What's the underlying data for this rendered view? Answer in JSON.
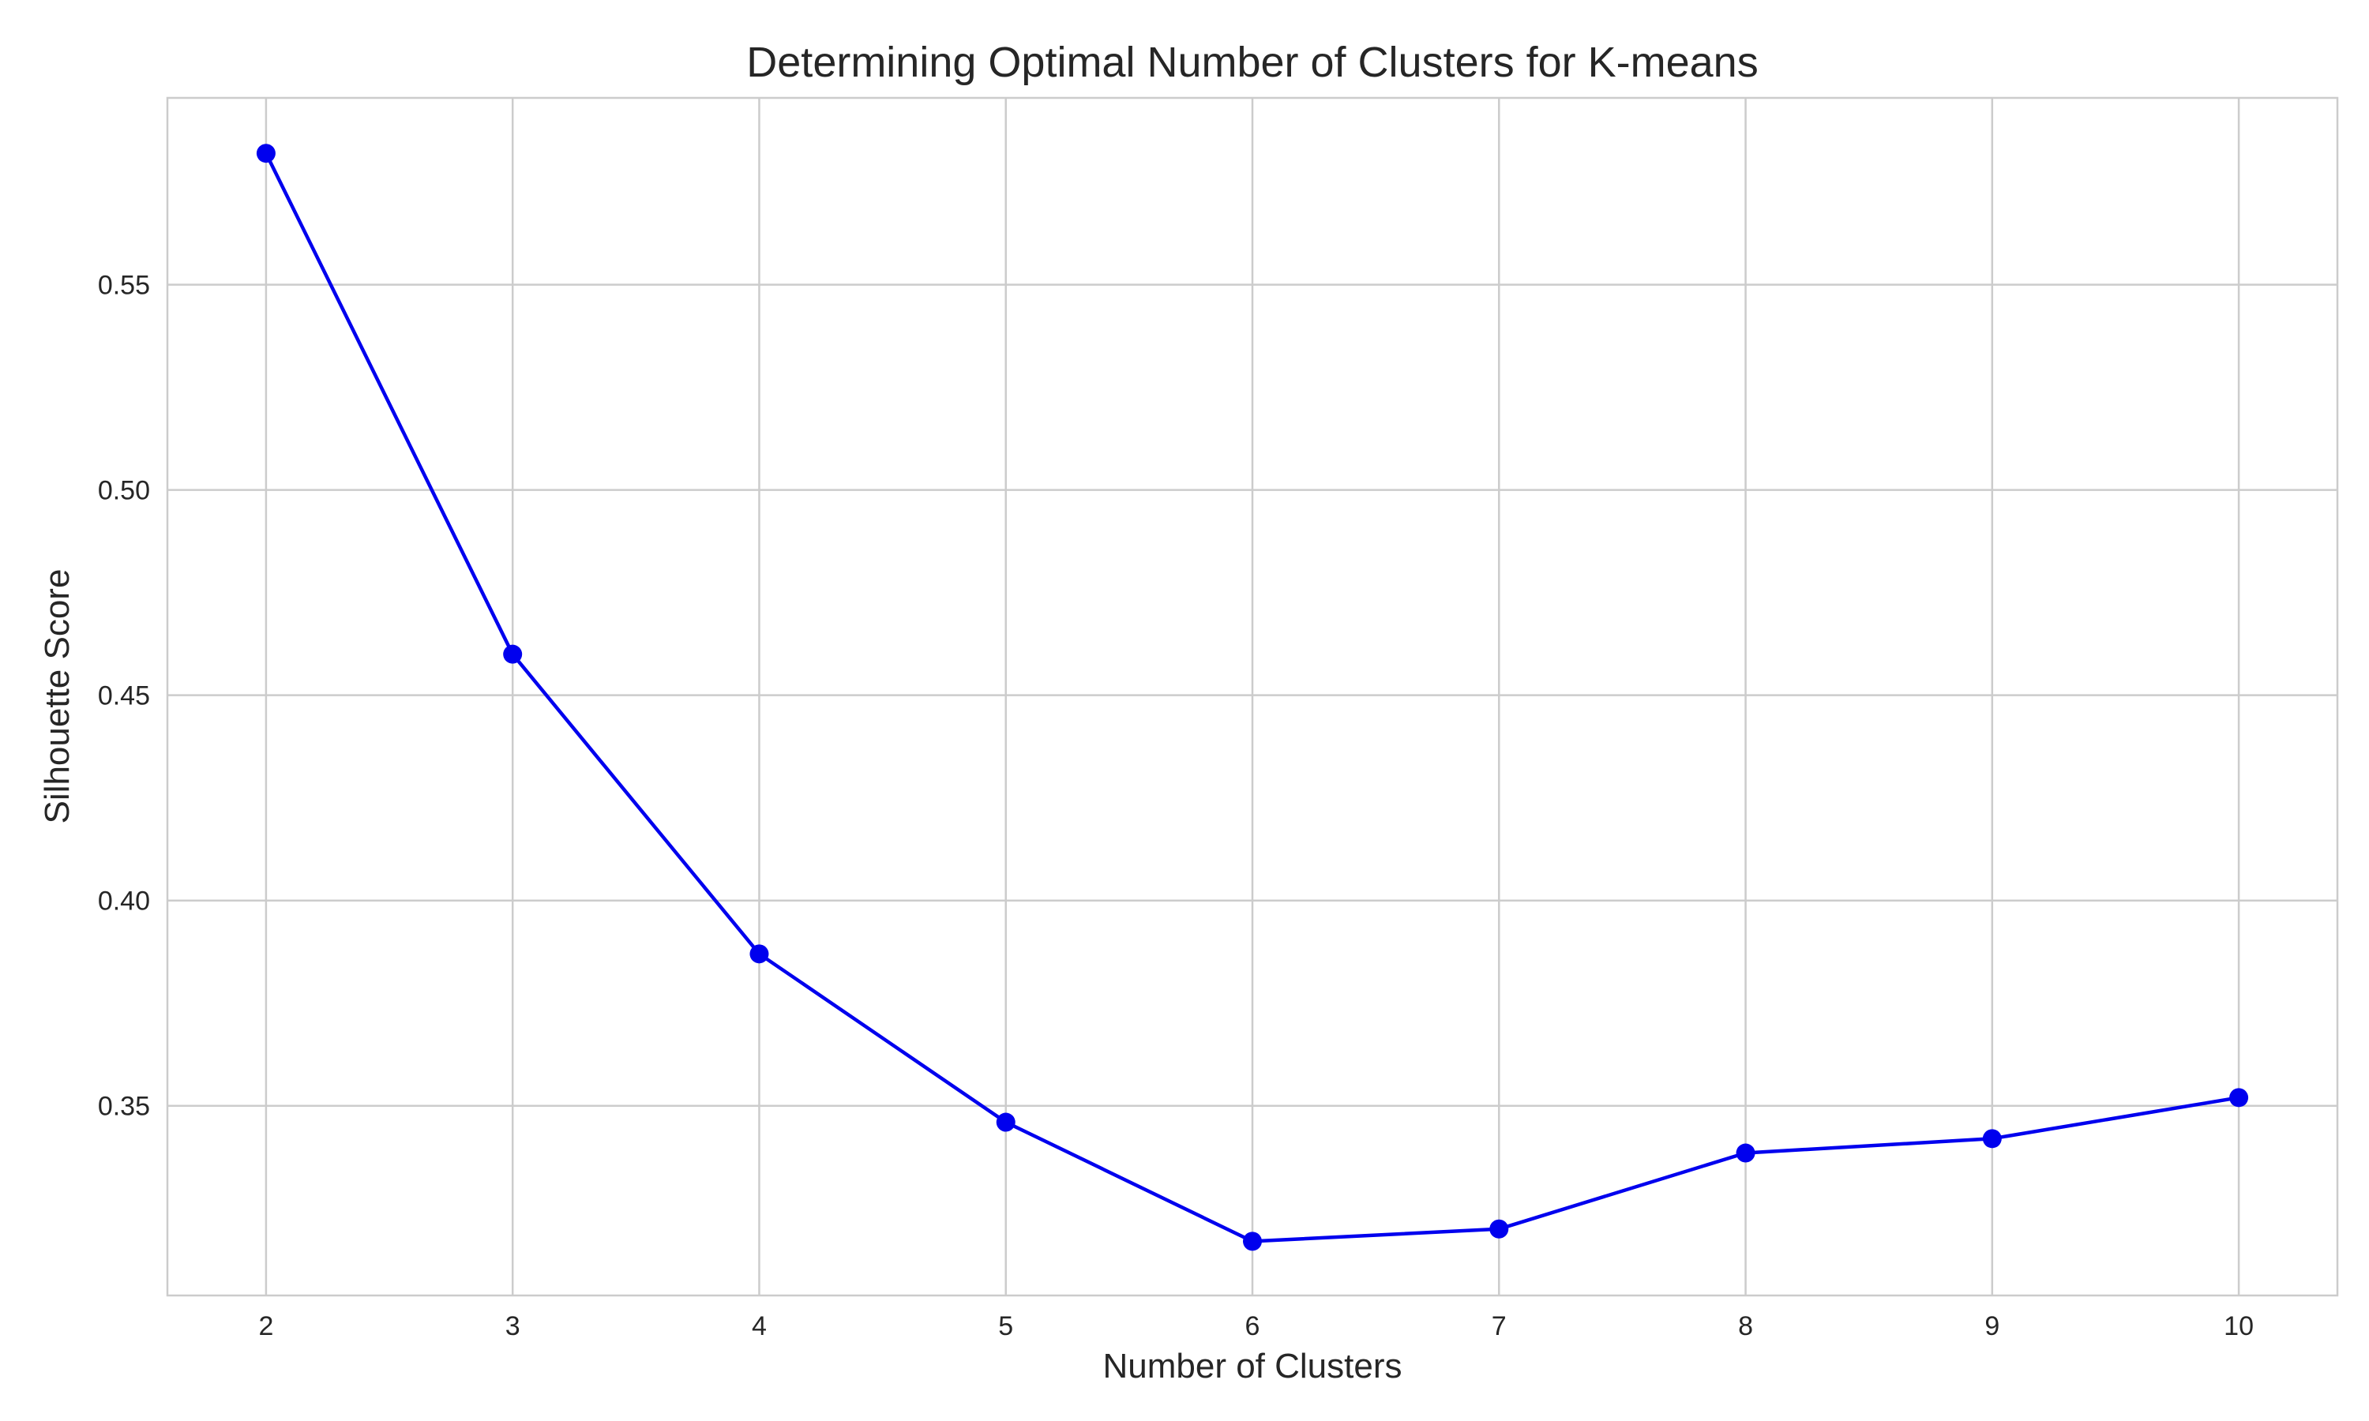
{
  "chart_data": {
    "type": "line",
    "title": "Determining Optimal Number of Clusters for K-means",
    "xlabel": "Number of Clusters",
    "ylabel": "Silhouette Score",
    "x": [
      2,
      3,
      4,
      5,
      6,
      7,
      8,
      9,
      10
    ],
    "series": [
      {
        "values": [
          0.582,
          0.46,
          0.387,
          0.346,
          0.317,
          0.32,
          0.3385,
          0.342,
          0.352
        ]
      }
    ],
    "x_ticks": [
      "2",
      "3",
      "4",
      "5",
      "6",
      "7",
      "8",
      "9",
      "10"
    ],
    "y_ticks": [
      "0.35",
      "0.40",
      "0.45",
      "0.50",
      "0.55"
    ],
    "y_tick_values": [
      0.35,
      0.4,
      0.45,
      0.5,
      0.55
    ],
    "xlim": [
      1.6,
      10.4
    ],
    "ylim": [
      0.3038,
      0.5955
    ],
    "grid": true,
    "legend": "none",
    "line_color": "#0000ee",
    "marker_color": "#0000ee"
  }
}
